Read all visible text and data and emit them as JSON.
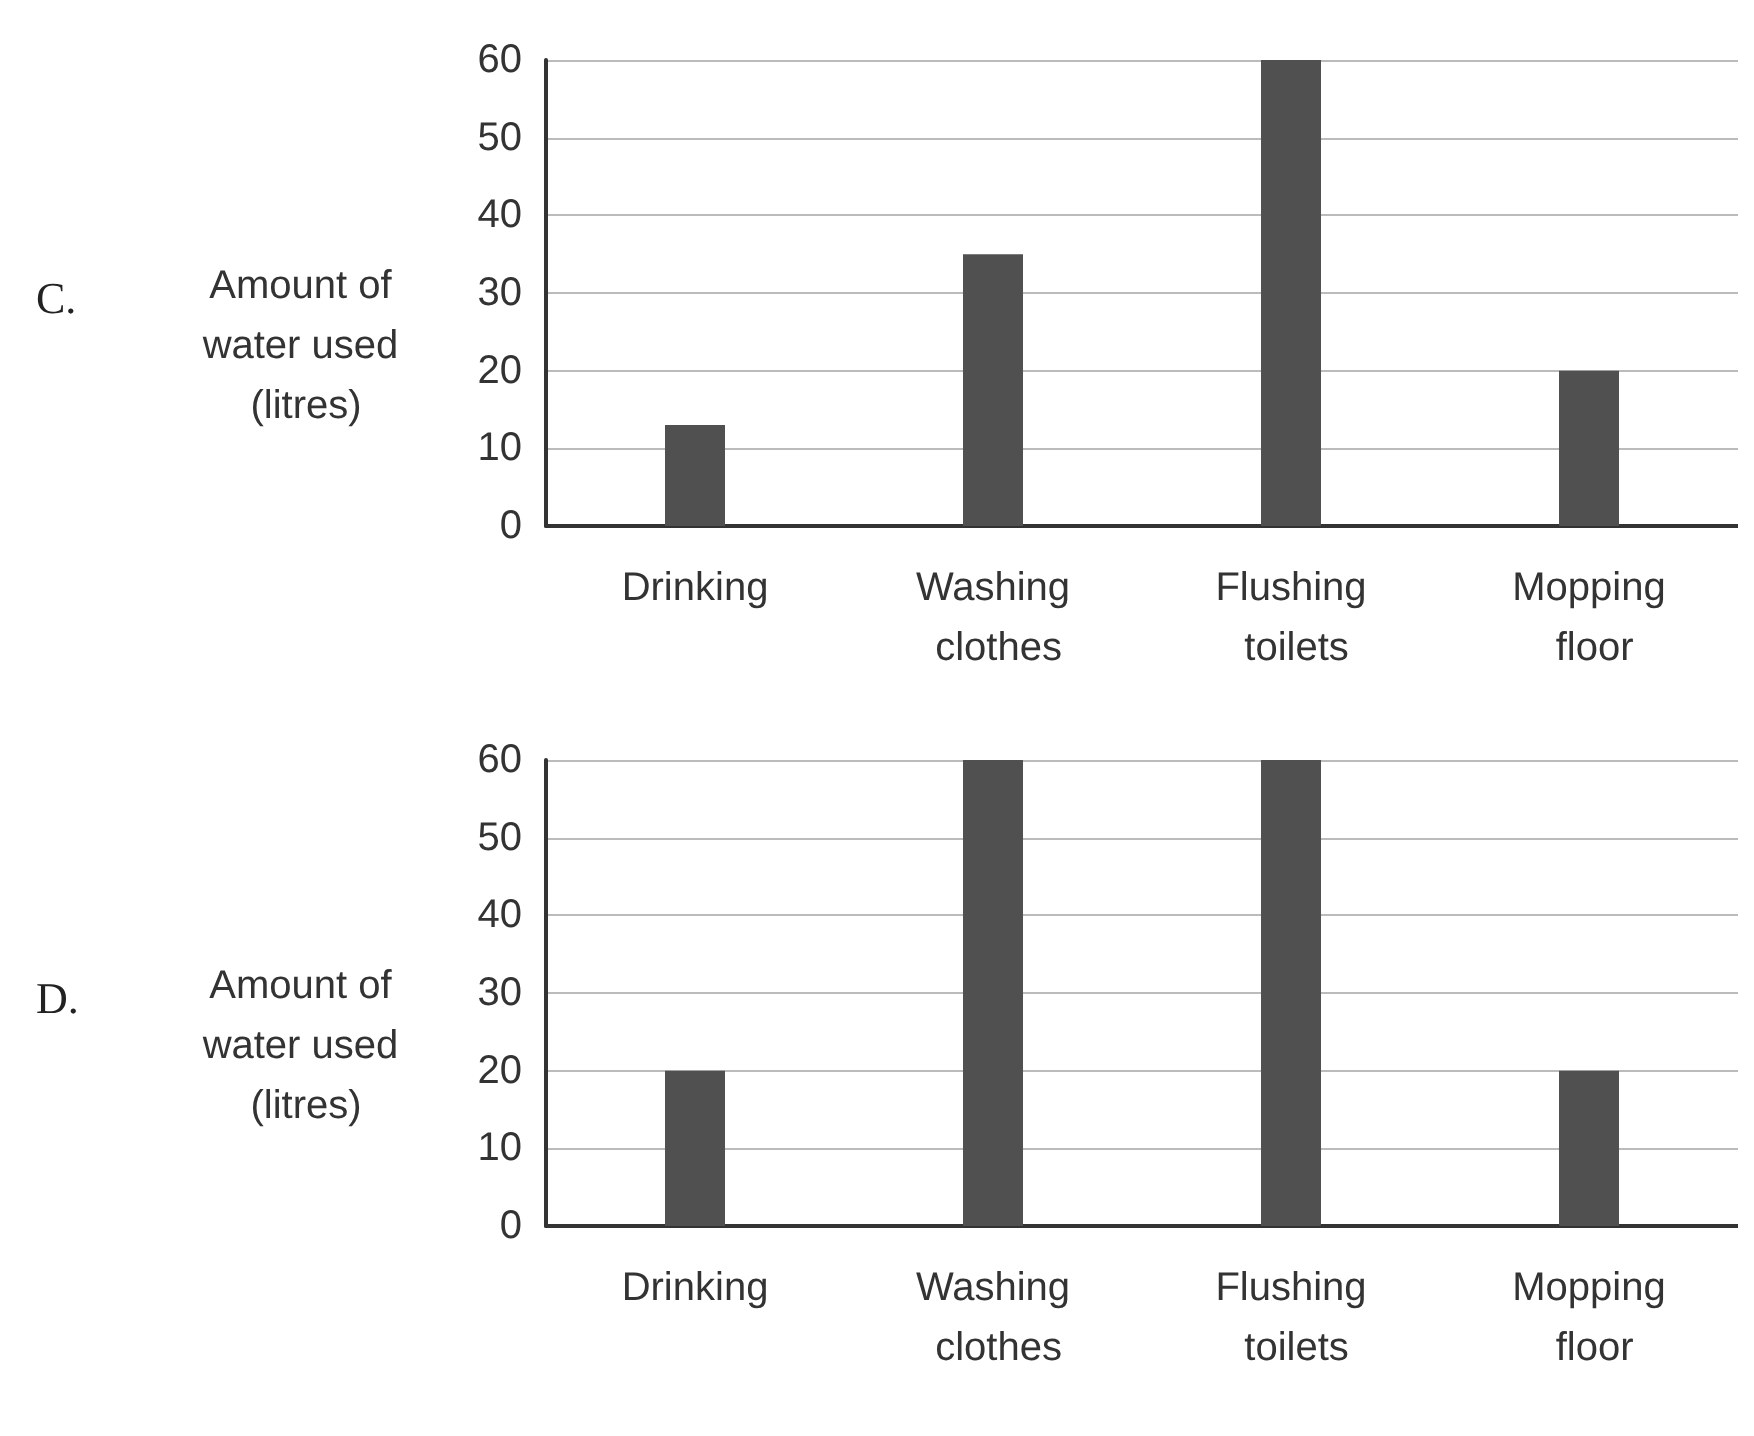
{
  "chart_data": [
    {
      "type": "bar",
      "annotations": [
        "C."
      ],
      "ylabel": "Amount of water used (litres)",
      "categories": [
        "Drinking",
        "Washing clothes",
        "Flushing toilets",
        "Mopping floor"
      ],
      "values": [
        13,
        35,
        60,
        20
      ],
      "color": "#505050",
      "ylim": [
        0,
        60
      ],
      "yticks": [
        0,
        10,
        20,
        30,
        40,
        50,
        60
      ],
      "grid": "y"
    },
    {
      "type": "bar",
      "annotations": [
        "D."
      ],
      "ylabel": "Amount of water used (litres)",
      "categories": [
        "Drinking",
        "Washing clothes",
        "Flushing toilets",
        "Mopping floor"
      ],
      "values": [
        20,
        60,
        60,
        20
      ],
      "color": "#505050",
      "ylim": [
        0,
        60
      ],
      "yticks": [
        0,
        10,
        20,
        30,
        40,
        50,
        60
      ],
      "grid": "y"
    }
  ]
}
